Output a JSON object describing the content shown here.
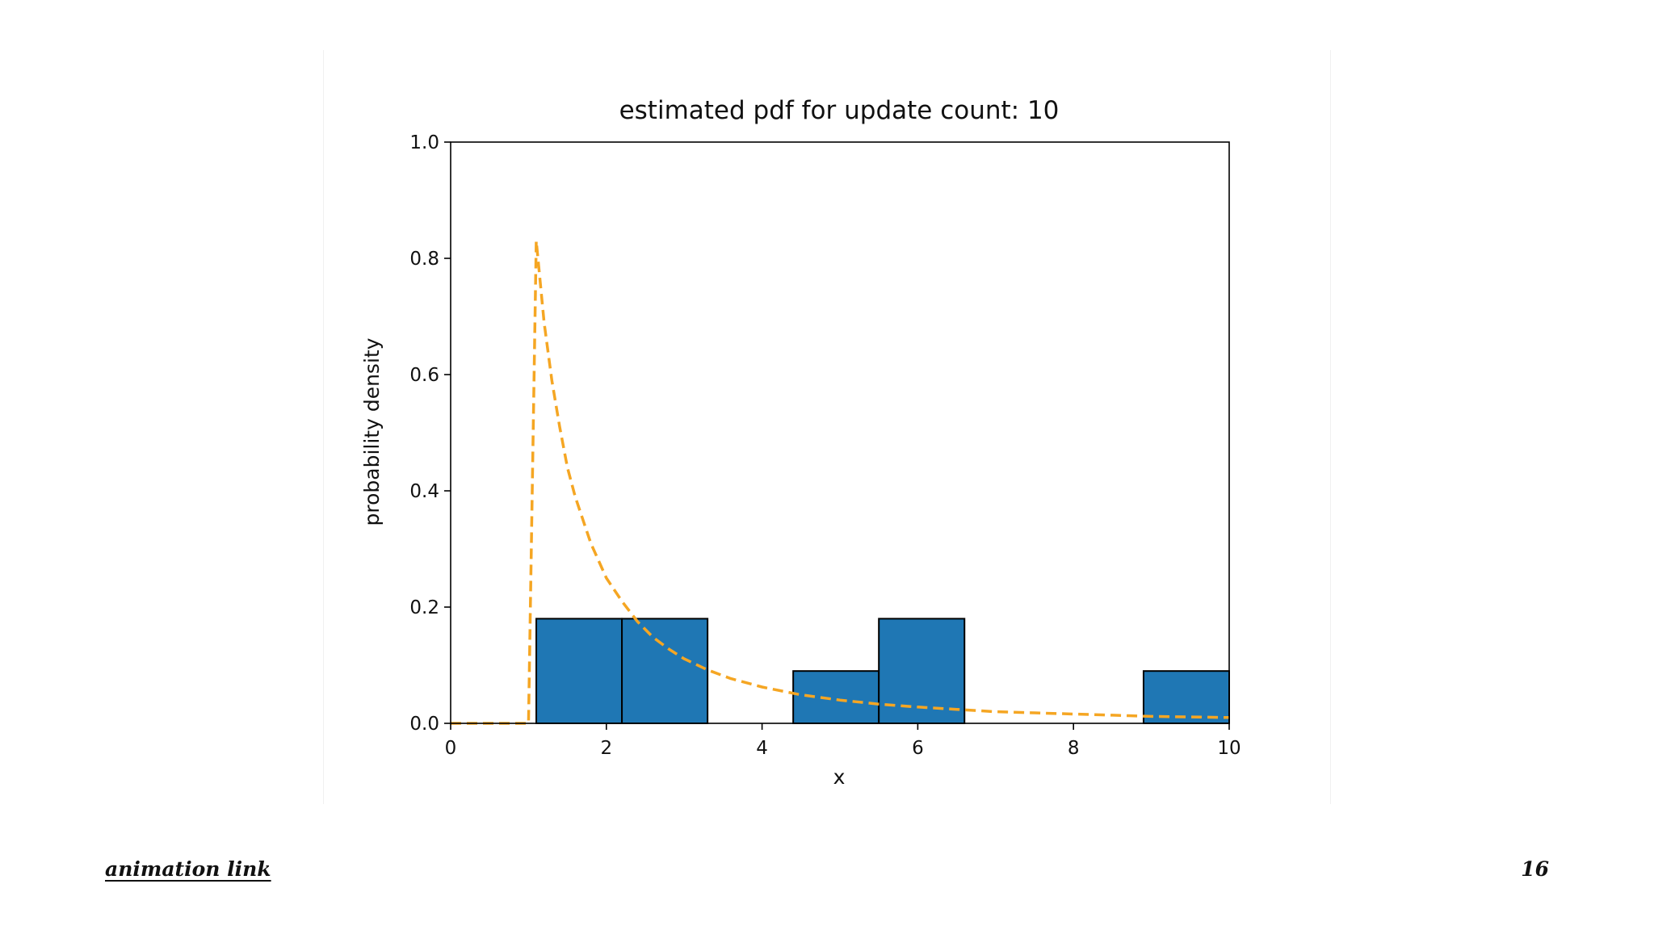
{
  "chart_data": {
    "type": "bar",
    "title": "estimated pdf for update count: 10",
    "xlabel": "x",
    "ylabel": "probability density",
    "xlim": [
      0,
      10
    ],
    "ylim": [
      0,
      1.0
    ],
    "xticks": [
      "0",
      "2",
      "4",
      "6",
      "8",
      "10"
    ],
    "yticks": [
      "0.0",
      "0.2",
      "0.4",
      "0.6",
      "0.8",
      "1.0"
    ],
    "grid": false,
    "colors": {
      "bar_fill": "#1f77b4",
      "bar_edge": "#000000",
      "curve": "#f5a623"
    },
    "series": [
      {
        "type": "histogram",
        "bins": [
          {
            "x0": 1.1,
            "x1": 2.2,
            "value": 0.18
          },
          {
            "x0": 2.2,
            "x1": 3.3,
            "value": 0.18
          },
          {
            "x0": 4.4,
            "x1": 5.5,
            "value": 0.09
          },
          {
            "x0": 5.5,
            "x1": 6.6,
            "value": 0.18
          },
          {
            "x0": 8.9,
            "x1": 10.0,
            "value": 0.09
          }
        ]
      },
      {
        "type": "line",
        "style": "dashed",
        "points": [
          [
            0,
            0.0
          ],
          [
            0.5,
            0.0
          ],
          [
            1.0,
            0.0
          ],
          [
            1.1,
            0.83
          ],
          [
            1.2,
            0.69
          ],
          [
            1.3,
            0.59
          ],
          [
            1.4,
            0.51
          ],
          [
            1.5,
            0.44
          ],
          [
            1.6,
            0.39
          ],
          [
            1.8,
            0.31
          ],
          [
            2.0,
            0.25
          ],
          [
            2.2,
            0.21
          ],
          [
            2.4,
            0.175
          ],
          [
            2.6,
            0.148
          ],
          [
            2.8,
            0.128
          ],
          [
            3.0,
            0.111
          ],
          [
            3.3,
            0.092
          ],
          [
            3.6,
            0.077
          ],
          [
            4.0,
            0.0625
          ],
          [
            4.5,
            0.049
          ],
          [
            5.0,
            0.04
          ],
          [
            5.5,
            0.033
          ],
          [
            6.0,
            0.028
          ],
          [
            6.5,
            0.024
          ],
          [
            7.0,
            0.02
          ],
          [
            7.5,
            0.018
          ],
          [
            8.0,
            0.016
          ],
          [
            8.5,
            0.014
          ],
          [
            9.0,
            0.012
          ],
          [
            9.5,
            0.011
          ],
          [
            10.0,
            0.01
          ]
        ]
      }
    ]
  },
  "footer": {
    "link_text": "animation link",
    "page_number": "16"
  }
}
